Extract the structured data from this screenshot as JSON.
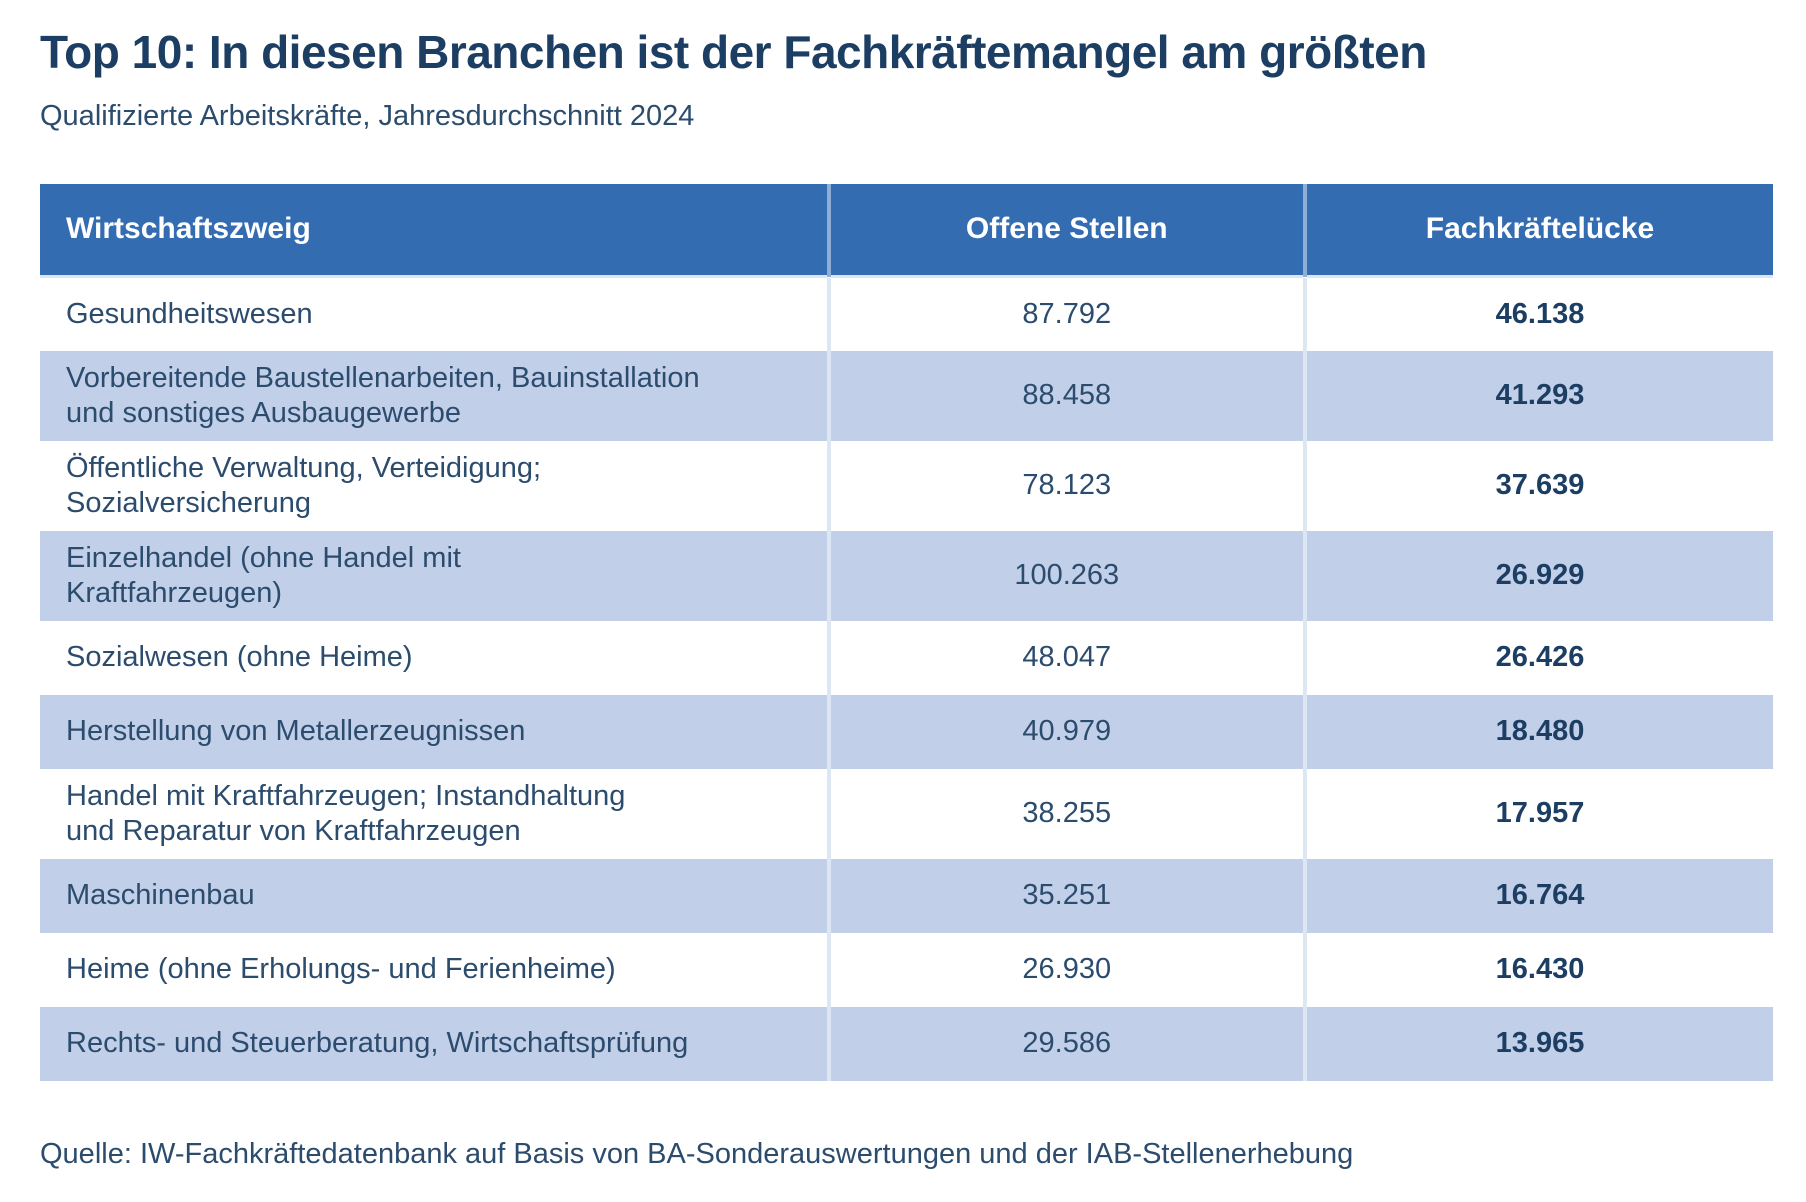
{
  "page": {
    "title": "Top 10: In diesen Branchen ist der Fachkräftemangel am größten",
    "subtitle": "Qualifizierte Arbeitskräfte, Jahresdurchschnitt 2024",
    "source": "Quelle: IW-Fachkräftedatenbank auf Basis von BA-Sonderauswertungen und der IAB-Stellenerhebung"
  },
  "table": {
    "columns": [
      "Wirtschaftszweig",
      "Offene Stellen",
      "Fachkräftelücke"
    ],
    "rows": [
      {
        "sector": "Gesundheitswesen",
        "open_positions": "87.792",
        "skills_gap": "46.138"
      },
      {
        "sector": "Vorbereitende Baustellenarbeiten, Bauinstallation\nund sonstiges Ausbaugewerbe",
        "open_positions": "88.458",
        "skills_gap": "41.293"
      },
      {
        "sector": "Öffentliche Verwaltung, Verteidigung;\nSozialversicherung",
        "open_positions": "78.123",
        "skills_gap": "37.639"
      },
      {
        "sector": "Einzelhandel (ohne Handel mit\nKraftfahrzeugen)",
        "open_positions": "100.263",
        "skills_gap": "26.929"
      },
      {
        "sector": "Sozialwesen (ohne Heime)",
        "open_positions": "48.047",
        "skills_gap": "26.426"
      },
      {
        "sector": "Herstellung von Metallerzeugnissen",
        "open_positions": "40.979",
        "skills_gap": "18.480"
      },
      {
        "sector": "Handel mit Kraftfahrzeugen; Instandhaltung\nund Reparatur von Kraftfahrzeugen",
        "open_positions": "38.255",
        "skills_gap": "17.957"
      },
      {
        "sector": "Maschinenbau",
        "open_positions": "35.251",
        "skills_gap": "16.764"
      },
      {
        "sector": "Heime (ohne Erholungs- und Ferienheime)",
        "open_positions": "26.930",
        "skills_gap": "16.430"
      },
      {
        "sector": "Rechts- und Steuerberatung, Wirtschaftsprüfung",
        "open_positions": "29.586",
        "skills_gap": "13.965"
      }
    ]
  },
  "chart_data": {
    "type": "table",
    "title": "Top 10: In diesen Branchen ist der Fachkräftemangel am größten",
    "subtitle": "Qualifizierte Arbeitskräfte, Jahresdurchschnitt 2024",
    "columns": [
      "Wirtschaftszweig",
      "Offene Stellen",
      "Fachkräftelücke"
    ],
    "rows": [
      [
        "Gesundheitswesen",
        87792,
        46138
      ],
      [
        "Vorbereitende Baustellenarbeiten, Bauinstallation und sonstiges Ausbaugewerbe",
        88458,
        41293
      ],
      [
        "Öffentliche Verwaltung, Verteidigung; Sozialversicherung",
        78123,
        37639
      ],
      [
        "Einzelhandel (ohne Handel mit Kraftfahrzeugen)",
        100263,
        26929
      ],
      [
        "Sozialwesen (ohne Heime)",
        48047,
        26426
      ],
      [
        "Herstellung von Metallerzeugnissen",
        40979,
        18480
      ],
      [
        "Handel mit Kraftfahrzeugen; Instandhaltung und Reparatur von Kraftfahrzeugen",
        38255,
        17957
      ],
      [
        "Maschinenbau",
        35251,
        16764
      ],
      [
        "Heime (ohne Erholungs- und Ferienheime)",
        26930,
        16430
      ],
      [
        "Rechts- und Steuerberatung, Wirtschaftsprüfung",
        29586,
        13965
      ]
    ],
    "number_format": "de-DE thousands separator (.)",
    "source": "Quelle: IW-Fachkräftedatenbank auf Basis von BA-Sonderauswertungen und der IAB-Stellenerhebung"
  },
  "colors": {
    "--header-blue": "#346cb2",
    "--row-shade": "#c2cfe9",
    "--divider": "#dde6f3",
    "--title-navy": "#1d3e63",
    "--text-navy": "#2c4c6e",
    "--bold-navy": "#1d3e63",
    "--page-bg": "#ffffff"
  }
}
